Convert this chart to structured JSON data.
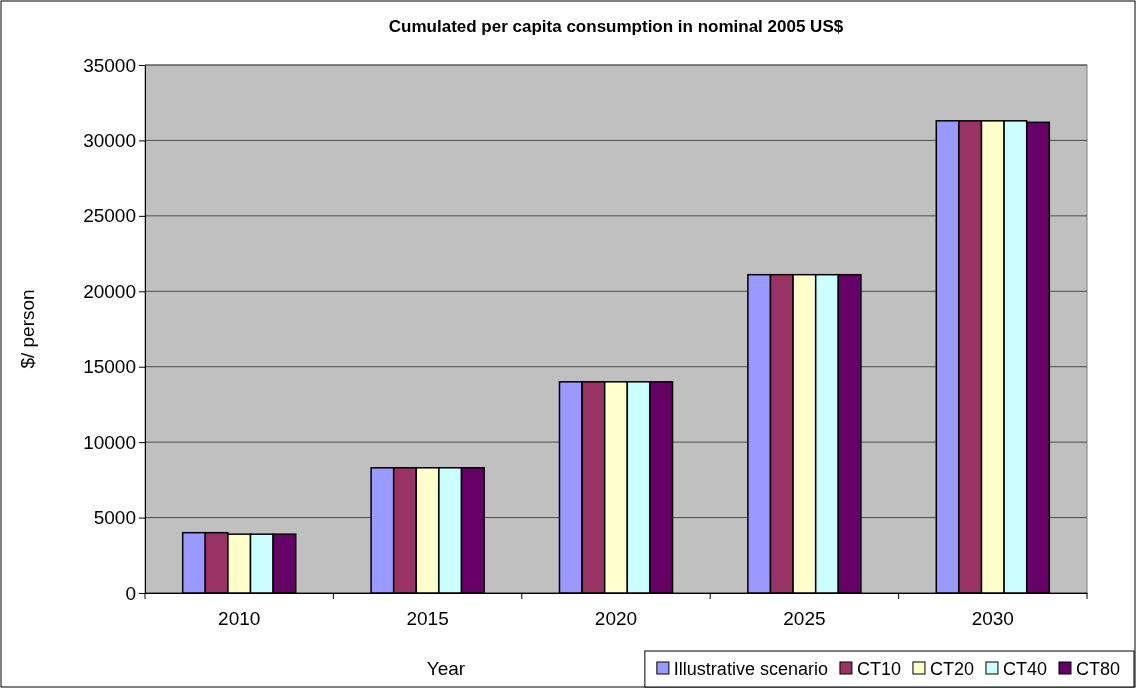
{
  "chart_data": {
    "type": "bar",
    "title": "Cumulated per capita consumption in nominal 2005 US$",
    "xlabel": "Year",
    "ylabel": "$/ person",
    "categories": [
      "2010",
      "2015",
      "2020",
      "2025",
      "2030"
    ],
    "series": [
      {
        "name": "Illustrative scenario",
        "color": "#9999ff",
        "values": [
          4000,
          8300,
          14000,
          21100,
          31300
        ]
      },
      {
        "name": "CT10",
        "color": "#993366",
        "values": [
          4000,
          8300,
          14000,
          21100,
          31300
        ]
      },
      {
        "name": "CT20",
        "color": "#ffffcc",
        "values": [
          3900,
          8300,
          14000,
          21100,
          31300
        ]
      },
      {
        "name": "CT40",
        "color": "#ccffff",
        "values": [
          3900,
          8300,
          14000,
          21100,
          31300
        ]
      },
      {
        "name": "CT80",
        "color": "#660066",
        "values": [
          3900,
          8300,
          14000,
          21100,
          31200
        ]
      }
    ],
    "ylim": [
      0,
      35000
    ],
    "yticks": [
      0,
      5000,
      10000,
      15000,
      20000,
      25000,
      30000,
      35000
    ],
    "grid": "y",
    "legend": "bottom right"
  }
}
